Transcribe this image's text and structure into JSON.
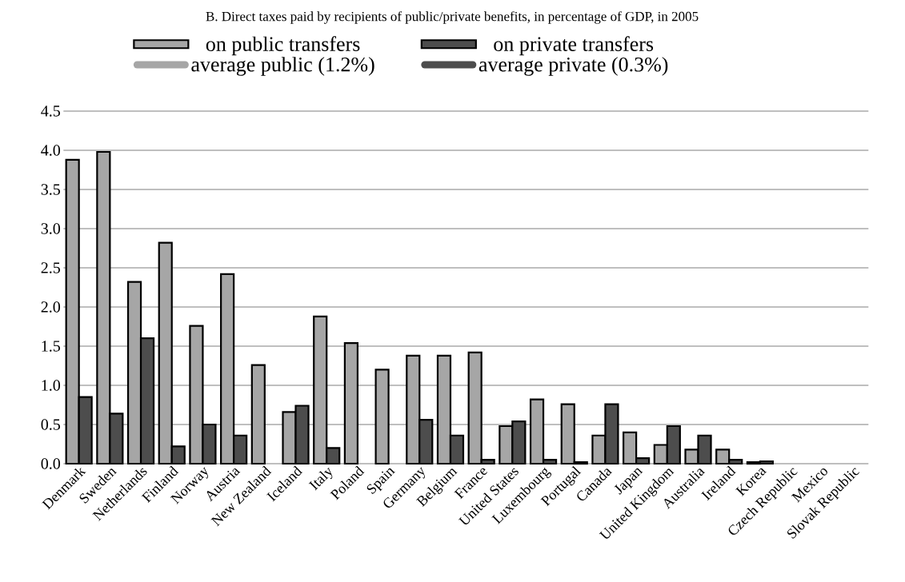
{
  "chart_data": {
    "type": "bar",
    "title": "B. Direct taxes paid by recipients of public/private benefits, in percentage of GDP, in 2005",
    "categories": [
      "Denmark",
      "Sweden",
      "Netherlands",
      "Finland",
      "Norway",
      "Austria",
      "New Zealand",
      "Iceland",
      "Italy",
      "Poland",
      "Spain",
      "Germany",
      "Belgium",
      "France",
      "United States",
      "Luxembourg",
      "Portugal",
      "Canada",
      "Japan",
      "United Kingdom",
      "Australia",
      "Ireland",
      "Korea",
      "Czech Republic",
      "Mexico",
      "Slovak Republic"
    ],
    "series": [
      {
        "name": "on public transfers",
        "color": "#a6a6a6",
        "values": [
          3.88,
          3.98,
          2.32,
          2.82,
          1.76,
          2.42,
          1.26,
          0.66,
          1.88,
          1.54,
          1.2,
          1.38,
          1.38,
          1.42,
          0.48,
          0.82,
          0.76,
          0.36,
          0.4,
          0.24,
          0.18,
          0.18,
          0.02,
          null,
          null,
          null
        ]
      },
      {
        "name": "on private transfers",
        "color": "#4d4d4d",
        "values": [
          0.85,
          0.64,
          1.6,
          0.22,
          0.5,
          0.36,
          null,
          0.74,
          0.2,
          null,
          null,
          0.56,
          0.36,
          0.05,
          0.54,
          0.05,
          0.02,
          0.76,
          0.07,
          0.48,
          0.36,
          0.05,
          0.03,
          null,
          null,
          null
        ]
      },
      {
        "name": "average public (1.2%)",
        "type": "line",
        "color": "#a6a6a6",
        "values": [
          null,
          null,
          null,
          null,
          null,
          null,
          null,
          null,
          null,
          null,
          null,
          null,
          null,
          null,
          null,
          null,
          null,
          null,
          null,
          null,
          null,
          null,
          null,
          null,
          null,
          null
        ]
      },
      {
        "name": "average private (0.3%)",
        "type": "line",
        "color": "#4d4d4d",
        "values": [
          null,
          null,
          null,
          null,
          null,
          null,
          null,
          null,
          null,
          null,
          null,
          null,
          null,
          null,
          null,
          null,
          null,
          null,
          null,
          null,
          null,
          null,
          null,
          null,
          null,
          null
        ]
      }
    ],
    "ylim": [
      0,
      4.5
    ],
    "yticks": [
      {
        "value": 0,
        "label": "0.0"
      },
      {
        "value": 0.5,
        "label": "0.5"
      },
      {
        "value": 1,
        "label": "1.0"
      },
      {
        "value": 1.5,
        "label": "1.5"
      },
      {
        "value": 2,
        "label": "2.0"
      },
      {
        "value": 2.5,
        "label": "2.5"
      },
      {
        "value": 3,
        "label": "3.0"
      },
      {
        "value": 3.5,
        "label": "3.5"
      },
      {
        "value": 4,
        "label": "4.0"
      },
      {
        "value": 4.5,
        "label": "4.5"
      }
    ],
    "grid": "y",
    "legend": "top"
  }
}
